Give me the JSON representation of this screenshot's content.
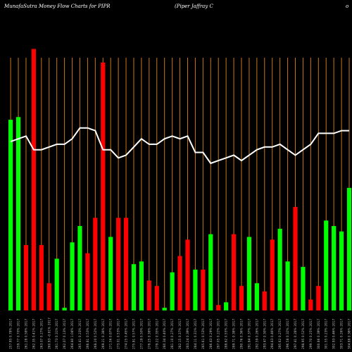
{
  "header": {
    "title_left": "MunafaSutra  Money Flow  Charts for PIPR",
    "title_right": "(Piper Jaffray C",
    "title_corner": "o"
  },
  "chart_data": {
    "type": "bar",
    "title": "MunafaSutra  Money Flow  Charts for PIPR",
    "xlabel": "",
    "ylabel": "",
    "ylim": [
      0,
      100
    ],
    "grid": true,
    "colors": {
      "up": "#00ff00",
      "down": "#ff0000",
      "line": "#ffffff",
      "grid": "#c87814",
      "background": "#000000"
    },
    "categories": [
      "257.95 0.78% 2017",
      "259.77 0.70% 2017",
      "261.28 0.58% 2017",
      "262.35 0.41% 2017",
      "263.07 0.27% 2017",
      "260.93 -0.81% 2017",
      "261.73 0.31% 2017",
      "262.07 0.13% 2017",
      "264.80 1.04% 2017",
      "265.41 0.23% 2017",
      "266.81 0.53% 2017",
      "268.20 0.52% 2017",
      "269.21 0.38% 2017",
      "271.56 0.87% 2017",
      "273.01 0.53% 2017",
      "274.25 0.45% 2017",
      "275.81 0.57% 2017",
      "277.19 0.50% 2017",
      "278.25 0.38% 2017",
      "279.22 0.35% 2017",
      "280.34 0.40% 2017",
      "281.10 0.27% 2017",
      "282.15 0.37% 2017",
      "283.24 0.39% 2017",
      "284.11 0.31% 2017",
      "285.61 0.53% 2017",
      "286.43 0.29% 2017",
      "287.05 0.22% 2017",
      "288.62 0.55% 2017",
      "289.71 0.38% 2017",
      "290.76 0.36% 2017",
      "291.84 0.37% 2017",
      "292.59 0.26% 2017",
      "293.47 0.30% 2017",
      "294.83 0.46% 2017",
      "295.62 0.27% 2017",
      "296.58 0.32% 2017",
      "297.41 0.28% 2017",
      "298.95 0.52% 2017",
      "299.70 0.25% 2017",
      "300.86 0.39% 2017",
      "301.55 0.23% 2017",
      "302.93 0.46% 2017",
      "303.71 0.26% 2017",
      "304.88 0.38% 2017"
    ],
    "series": [
      {
        "type": "bar",
        "values": [
          70,
          71,
          24,
          96,
          24,
          10,
          19,
          1,
          25,
          31,
          21,
          34,
          91,
          27,
          34,
          34,
          17,
          18,
          11,
          9,
          1,
          14,
          20,
          26,
          15,
          15,
          28,
          2,
          3,
          28,
          9,
          27,
          10,
          7,
          26,
          30,
          18,
          38,
          16,
          4,
          9,
          33,
          31,
          29,
          45
        ],
        "colors": [
          "up",
          "up",
          "down",
          "down",
          "down",
          "down",
          "up",
          "up",
          "up",
          "up",
          "down",
          "down",
          "down",
          "up",
          "down",
          "down",
          "up",
          "up",
          "down",
          "down",
          "up",
          "up",
          "down",
          "down",
          "up",
          "down",
          "up",
          "down",
          "up",
          "down",
          "down",
          "up",
          "up",
          "down",
          "down",
          "up",
          "up",
          "down",
          "up",
          "down",
          "down",
          "up",
          "up",
          "up",
          "up"
        ]
      },
      {
        "type": "line",
        "values": [
          62,
          63,
          64,
          59,
          59,
          60,
          61,
          61,
          63,
          67,
          67,
          66,
          59,
          59,
          56,
          57,
          60,
          63,
          61,
          61,
          63,
          64,
          63,
          64,
          58,
          58,
          54,
          55,
          56,
          57,
          55,
          57,
          59,
          60,
          60,
          61,
          59,
          57,
          59,
          61,
          65,
          65,
          65,
          66,
          66
        ]
      }
    ]
  }
}
